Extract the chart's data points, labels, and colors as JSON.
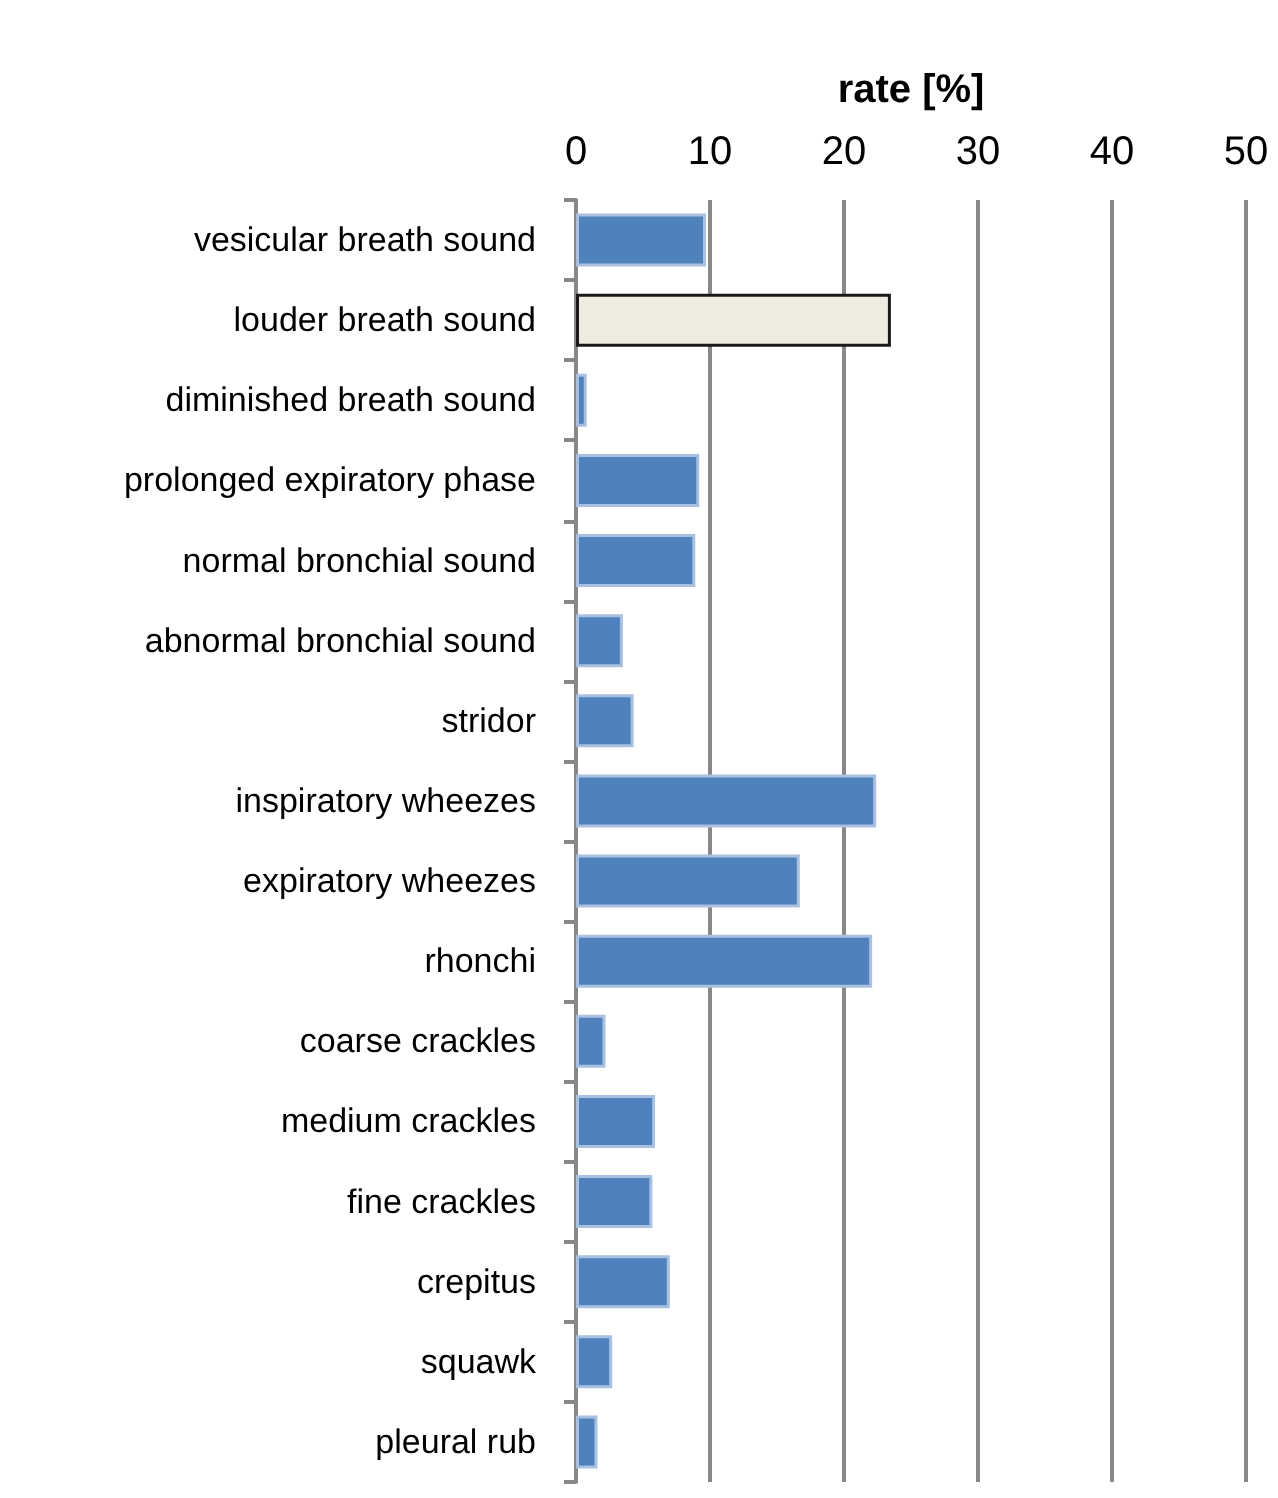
{
  "chart_data": {
    "type": "bar",
    "orientation": "horizontal",
    "xlabel": "rate [%]",
    "categories": [
      "vesicular breath sound",
      "louder breath sound",
      "diminished breath sound",
      "prolonged expiratory phase",
      "normal bronchial sound",
      "abnormal bronchial sound",
      "stridor",
      "inspiratory wheezes",
      "expiratory wheezes",
      "rhonchi",
      "coarse crackles",
      "medium crackles",
      "fine crackles",
      "crepitus",
      "squawk",
      "pleural rub"
    ],
    "values": [
      9.7,
      23.5,
      0.8,
      9.2,
      8.9,
      3.5,
      4.3,
      22.4,
      16.7,
      22.1,
      2.2,
      5.9,
      5.7,
      7.0,
      2.7,
      1.6
    ],
    "colors": [
      "#4f81bd",
      "#eeebe1",
      "#4f81bd",
      "#4f81bd",
      "#4f81bd",
      "#4f81bd",
      "#4f81bd",
      "#4f81bd",
      "#4f81bd",
      "#4f81bd",
      "#4f81bd",
      "#4f81bd",
      "#4f81bd",
      "#4f81bd",
      "#4f81bd",
      "#4f81bd"
    ],
    "xlim": [
      0,
      50
    ],
    "xticks": [
      0,
      10,
      20,
      30,
      40,
      50
    ],
    "grid": "x"
  }
}
